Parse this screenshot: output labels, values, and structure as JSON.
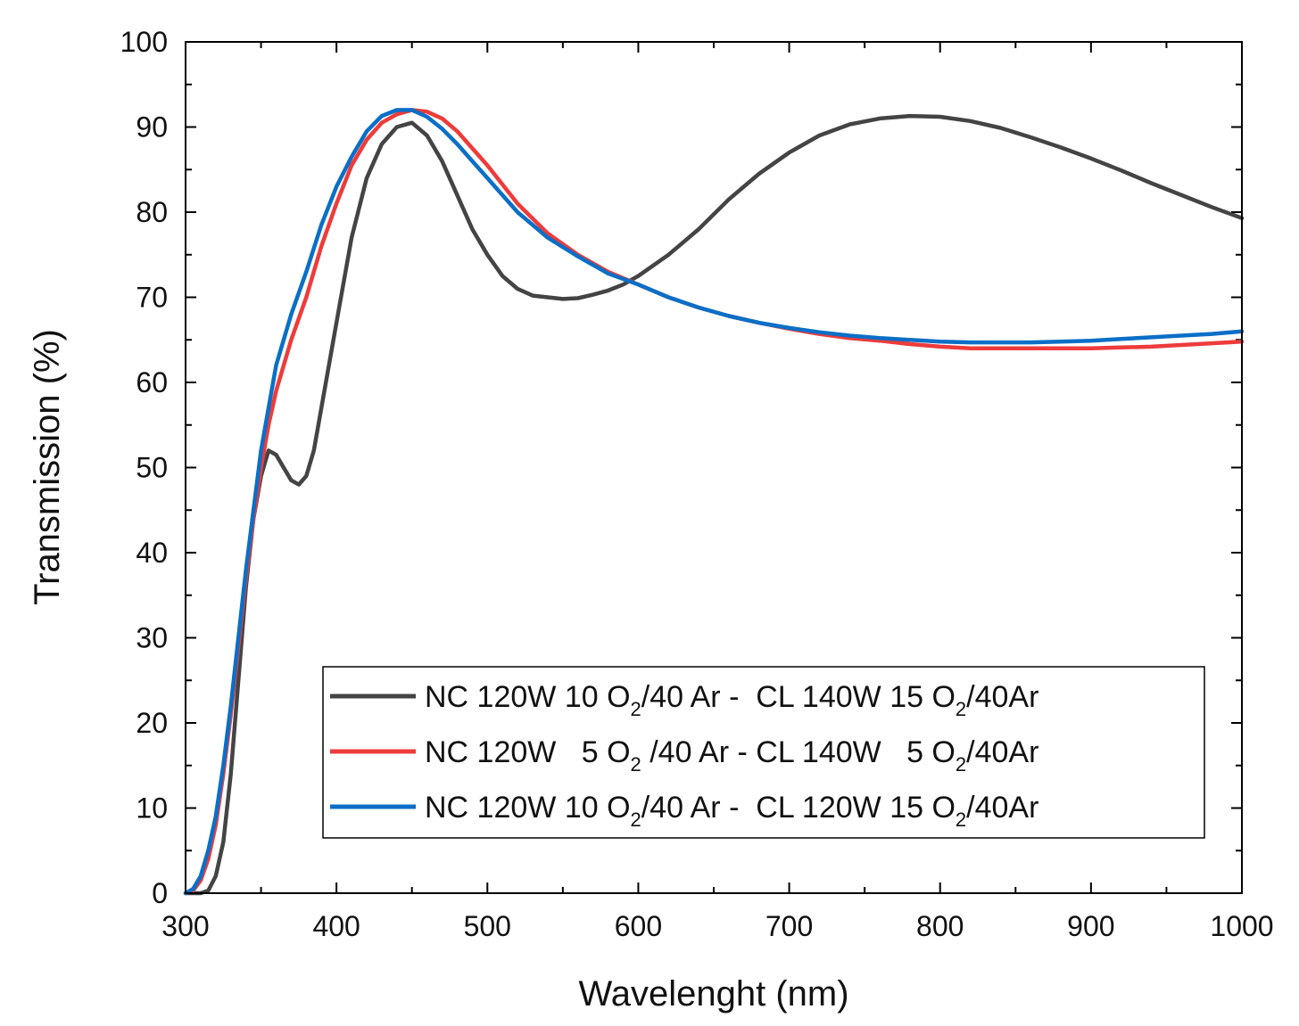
{
  "chart_data": {
    "type": "line",
    "title": "",
    "xlabel": "Wavelenght (nm)",
    "ylabel": "Transmission (%)",
    "xlim": [
      300,
      1000
    ],
    "ylim": [
      0,
      100
    ],
    "xticks": [
      300,
      400,
      500,
      600,
      700,
      800,
      900,
      1000
    ],
    "yticks": [
      0,
      10,
      20,
      30,
      40,
      50,
      60,
      70,
      80,
      90,
      100
    ],
    "grid": false,
    "legend_position": "bottom-right",
    "series": [
      {
        "name": "NC 120W 10 O2/40 Ar - CL 140W 15 O2/40Ar",
        "label_parts": [
          "NC 120W 10 O",
          "2",
          "/40 Ar -  CL 140W 15 O",
          "2",
          "/40Ar"
        ],
        "color": "#444444",
        "points": [
          [
            300,
            0
          ],
          [
            310,
            0
          ],
          [
            315,
            0.3
          ],
          [
            320,
            2
          ],
          [
            325,
            6
          ],
          [
            330,
            14
          ],
          [
            335,
            25
          ],
          [
            340,
            36
          ],
          [
            345,
            44
          ],
          [
            350,
            49
          ],
          [
            355,
            52
          ],
          [
            360,
            51.5
          ],
          [
            365,
            50
          ],
          [
            370,
            48.5
          ],
          [
            375,
            48
          ],
          [
            380,
            49
          ],
          [
            385,
            52
          ],
          [
            390,
            57
          ],
          [
            400,
            67
          ],
          [
            410,
            77
          ],
          [
            420,
            84
          ],
          [
            430,
            88
          ],
          [
            440,
            90
          ],
          [
            450,
            90.5
          ],
          [
            460,
            89
          ],
          [
            470,
            86
          ],
          [
            480,
            82
          ],
          [
            490,
            78
          ],
          [
            500,
            75
          ],
          [
            510,
            72.5
          ],
          [
            520,
            71
          ],
          [
            530,
            70.2
          ],
          [
            540,
            70
          ],
          [
            550,
            69.8
          ],
          [
            560,
            69.9
          ],
          [
            570,
            70.3
          ],
          [
            580,
            70.8
          ],
          [
            590,
            71.5
          ],
          [
            600,
            72.5
          ],
          [
            620,
            75
          ],
          [
            640,
            78
          ],
          [
            660,
            81.5
          ],
          [
            680,
            84.5
          ],
          [
            700,
            87
          ],
          [
            720,
            89
          ],
          [
            740,
            90.3
          ],
          [
            760,
            91
          ],
          [
            780,
            91.3
          ],
          [
            800,
            91.2
          ],
          [
            820,
            90.7
          ],
          [
            840,
            89.9
          ],
          [
            860,
            88.8
          ],
          [
            880,
            87.6
          ],
          [
            900,
            86.3
          ],
          [
            920,
            84.9
          ],
          [
            940,
            83.4
          ],
          [
            960,
            82
          ],
          [
            980,
            80.6
          ],
          [
            1000,
            79.3
          ]
        ]
      },
      {
        "name": "NC 120W 5 O2 /40 Ar - CL 140W 5 O2/40Ar",
        "label_parts": [
          "NC 120W   5 O",
          "2",
          " /40 Ar - CL 140W   5 O",
          "2",
          "/40Ar"
        ],
        "color": "#ee3b3b",
        "points": [
          [
            300,
            0
          ],
          [
            305,
            0.3
          ],
          [
            310,
            1.5
          ],
          [
            315,
            4
          ],
          [
            320,
            8
          ],
          [
            325,
            14
          ],
          [
            330,
            21
          ],
          [
            335,
            29
          ],
          [
            340,
            37
          ],
          [
            345,
            44
          ],
          [
            350,
            50
          ],
          [
            355,
            55
          ],
          [
            360,
            59
          ],
          [
            370,
            65
          ],
          [
            380,
            70
          ],
          [
            390,
            76
          ],
          [
            400,
            81
          ],
          [
            410,
            85.5
          ],
          [
            420,
            88.5
          ],
          [
            430,
            90.5
          ],
          [
            440,
            91.5
          ],
          [
            450,
            92
          ],
          [
            460,
            91.8
          ],
          [
            470,
            91
          ],
          [
            480,
            89.5
          ],
          [
            490,
            87.5
          ],
          [
            500,
            85.5
          ],
          [
            520,
            81
          ],
          [
            540,
            77.5
          ],
          [
            560,
            75
          ],
          [
            580,
            73
          ],
          [
            600,
            71.5
          ],
          [
            620,
            70
          ],
          [
            640,
            68.8
          ],
          [
            660,
            67.8
          ],
          [
            680,
            67
          ],
          [
            700,
            66.3
          ],
          [
            720,
            65.7
          ],
          [
            740,
            65.2
          ],
          [
            760,
            64.9
          ],
          [
            780,
            64.5
          ],
          [
            800,
            64.2
          ],
          [
            820,
            64
          ],
          [
            840,
            64
          ],
          [
            860,
            64
          ],
          [
            880,
            64
          ],
          [
            900,
            64
          ],
          [
            920,
            64.1
          ],
          [
            940,
            64.2
          ],
          [
            960,
            64.4
          ],
          [
            980,
            64.6
          ],
          [
            1000,
            64.8
          ]
        ]
      },
      {
        "name": "NC 120W 10 O2/40 Ar - CL 120W 15 O2/40Ar",
        "label_parts": [
          "NC 120W 10 O",
          "2",
          "/40 Ar -  CL 120W 15 O",
          "2",
          "/40Ar"
        ],
        "color": "#0a6fc7",
        "points": [
          [
            300,
            0
          ],
          [
            305,
            0.5
          ],
          [
            310,
            2
          ],
          [
            315,
            5
          ],
          [
            320,
            9
          ],
          [
            325,
            15
          ],
          [
            330,
            22
          ],
          [
            335,
            30
          ],
          [
            340,
            38
          ],
          [
            345,
            45
          ],
          [
            350,
            52
          ],
          [
            355,
            57
          ],
          [
            360,
            62
          ],
          [
            370,
            68
          ],
          [
            380,
            73
          ],
          [
            390,
            78.5
          ],
          [
            400,
            83
          ],
          [
            410,
            86.5
          ],
          [
            420,
            89.5
          ],
          [
            430,
            91.3
          ],
          [
            440,
            92
          ],
          [
            450,
            92
          ],
          [
            460,
            91.2
          ],
          [
            470,
            89.8
          ],
          [
            480,
            88
          ],
          [
            490,
            86
          ],
          [
            500,
            84
          ],
          [
            520,
            80
          ],
          [
            540,
            77
          ],
          [
            560,
            74.8
          ],
          [
            580,
            72.8
          ],
          [
            600,
            71.5
          ],
          [
            620,
            70
          ],
          [
            640,
            68.8
          ],
          [
            660,
            67.8
          ],
          [
            680,
            67
          ],
          [
            700,
            66.4
          ],
          [
            720,
            65.9
          ],
          [
            740,
            65.5
          ],
          [
            760,
            65.2
          ],
          [
            780,
            65
          ],
          [
            800,
            64.8
          ],
          [
            820,
            64.7
          ],
          [
            840,
            64.7
          ],
          [
            860,
            64.7
          ],
          [
            880,
            64.8
          ],
          [
            900,
            64.9
          ],
          [
            920,
            65.1
          ],
          [
            940,
            65.3
          ],
          [
            960,
            65.5
          ],
          [
            980,
            65.7
          ],
          [
            1000,
            66
          ]
        ]
      }
    ]
  }
}
